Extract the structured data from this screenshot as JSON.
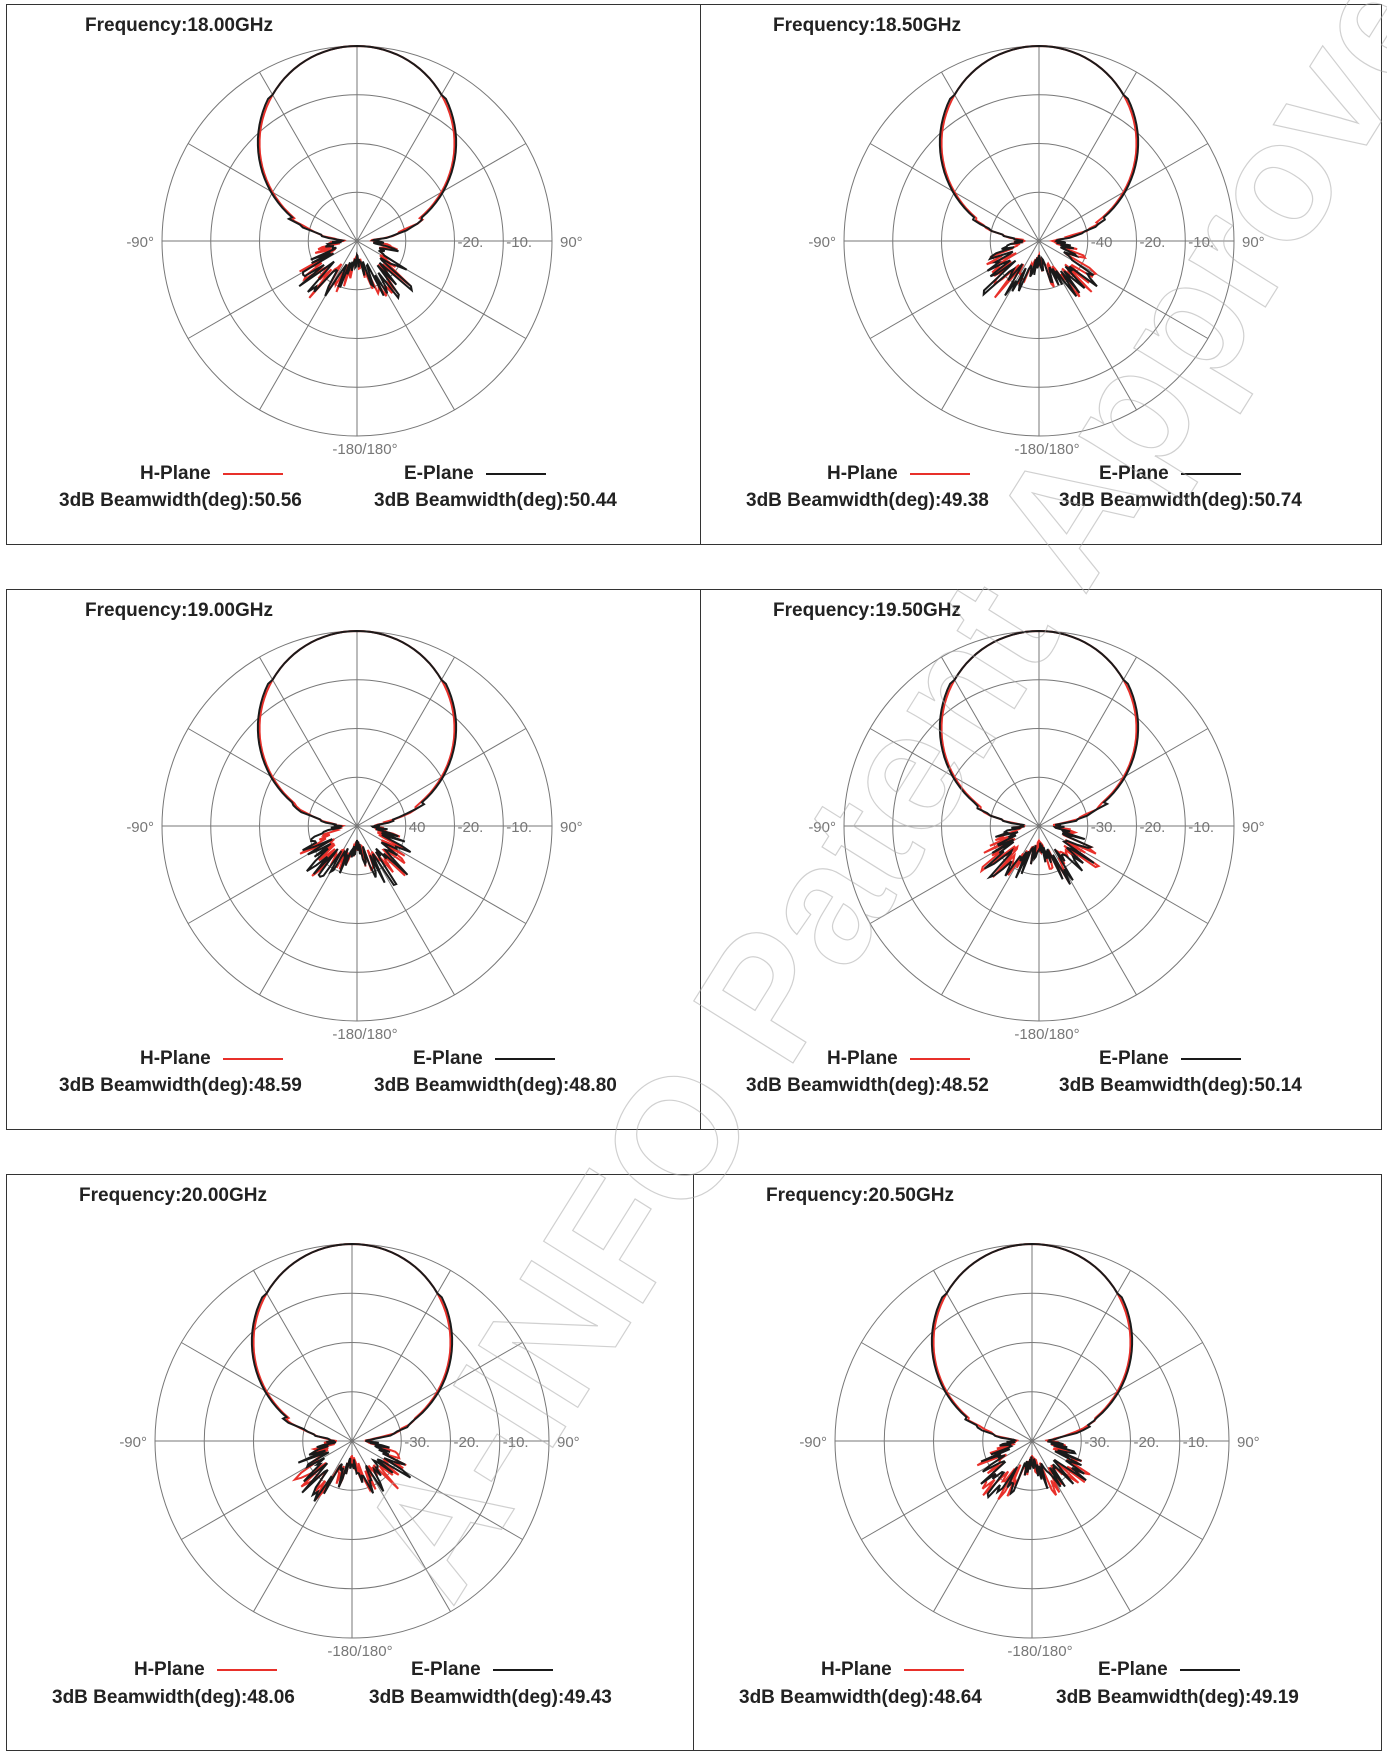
{
  "watermark": "A-INFO Patent Approved",
  "chart_data": [
    {
      "type": "polar",
      "title": "Frequency:18.00GHz",
      "angle_labels": [
        "-90°",
        "90°",
        "-180/180°"
      ],
      "radial_ticks": [
        "-20.",
        "-10."
      ],
      "series": [
        {
          "name": "H-Plane",
          "color": "#e8302a",
          "beamwidth_label": "3dB Beamwidth(deg):50.56"
        },
        {
          "name": "E-Plane",
          "color": "#1a1a1a",
          "beamwidth_label": "3dB Beamwidth(deg):50.44"
        }
      ]
    },
    {
      "type": "polar",
      "title": "Frequency:18.50GHz",
      "angle_labels": [
        "-90°",
        "90°",
        "-180/180°"
      ],
      "radial_ticks": [
        "-40",
        "-20.",
        "-10."
      ],
      "series": [
        {
          "name": "H-Plane",
          "color": "#e8302a",
          "beamwidth_label": "3dB Beamwidth(deg):49.38"
        },
        {
          "name": "E-Plane",
          "color": "#1a1a1a",
          "beamwidth_label": "3dB Beamwidth(deg):50.74"
        }
      ]
    },
    {
      "type": "polar",
      "title": "Frequency:19.00GHz",
      "angle_labels": [
        "-90°",
        "90°",
        "-180/180°"
      ],
      "radial_ticks": [
        "40",
        "-20.",
        "-10."
      ],
      "series": [
        {
          "name": "H-Plane",
          "color": "#e8302a",
          "beamwidth_label": "3dB Beamwidth(deg):48.59"
        },
        {
          "name": "E-Plane",
          "color": "#1a1a1a",
          "beamwidth_label": "3dB Beamwidth(deg):48.80"
        }
      ]
    },
    {
      "type": "polar",
      "title": "Frequency:19.50GHz",
      "angle_labels": [
        "-90°",
        "90°",
        "-180/180°"
      ],
      "radial_ticks": [
        "-30.",
        "-20.",
        "-10."
      ],
      "series": [
        {
          "name": "H-Plane",
          "color": "#e8302a",
          "beamwidth_label": "3dB Beamwidth(deg):48.52"
        },
        {
          "name": "E-Plane",
          "color": "#1a1a1a",
          "beamwidth_label": "3dB Beamwidth(deg):50.14"
        }
      ]
    },
    {
      "type": "polar",
      "title": "Frequency:20.00GHz",
      "angle_labels": [
        "-90°",
        "90°",
        "-180/180°"
      ],
      "radial_ticks": [
        "-30.",
        "-20.",
        "-10."
      ],
      "series": [
        {
          "name": "H-Plane",
          "color": "#e8302a",
          "beamwidth_label": "3dB Beamwidth(deg):48.06"
        },
        {
          "name": "E-Plane",
          "color": "#1a1a1a",
          "beamwidth_label": "3dB Beamwidth(deg):49.43"
        }
      ]
    },
    {
      "type": "polar",
      "title": "Frequency:20.50GHz",
      "angle_labels": [
        "-90°",
        "90°",
        "-180/180°"
      ],
      "radial_ticks": [
        "-30.",
        "-20.",
        "-10."
      ],
      "series": [
        {
          "name": "H-Plane",
          "color": "#e8302a",
          "beamwidth_label": "3dB Beamwidth(deg):48.64"
        },
        {
          "name": "E-Plane",
          "color": "#1a1a1a",
          "beamwidth_label": "3dB Beamwidth(deg):49.19"
        }
      ]
    }
  ]
}
